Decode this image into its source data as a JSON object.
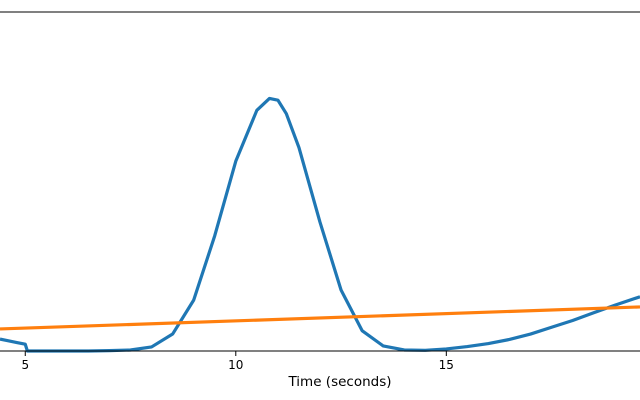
{
  "chart_data": {
    "type": "line",
    "title": "",
    "xlabel": "Time (seconds)",
    "ylabel": "",
    "xlim": [
      4.4,
      19.6
    ],
    "ylim": [
      0,
      1.0
    ],
    "xticks": [
      5,
      10,
      15
    ],
    "xtick_labels": [
      "5",
      "10",
      "15"
    ],
    "grid": false,
    "legend": "none",
    "series": [
      {
        "color": "#1f77b4",
        "x": [
          4.4,
          4.6,
          4.8,
          5.0,
          5.05,
          5.5,
          6.0,
          6.5,
          7.0,
          7.5,
          8.0,
          8.5,
          9.0,
          9.5,
          10.0,
          10.5,
          10.8,
          11.0,
          11.2,
          11.5,
          12.0,
          12.5,
          13.0,
          13.5,
          14.0,
          14.5,
          15.0,
          15.5,
          16.0,
          16.5,
          17.0,
          17.5,
          18.0,
          18.5,
          19.0,
          19.6
        ],
        "y": [
          0.035,
          0.03,
          0.025,
          0.02,
          0.0,
          0.0,
          0.0,
          0.0,
          0.001,
          0.003,
          0.012,
          0.05,
          0.15,
          0.34,
          0.56,
          0.71,
          0.745,
          0.74,
          0.7,
          0.6,
          0.38,
          0.18,
          0.06,
          0.015,
          0.003,
          0.002,
          0.006,
          0.013,
          0.022,
          0.034,
          0.05,
          0.07,
          0.09,
          0.113,
          0.135,
          0.16
        ]
      },
      {
        "color": "#ff7f0e",
        "x": [
          4.4,
          19.6
        ],
        "y": [
          0.065,
          0.13
        ]
      }
    ]
  }
}
